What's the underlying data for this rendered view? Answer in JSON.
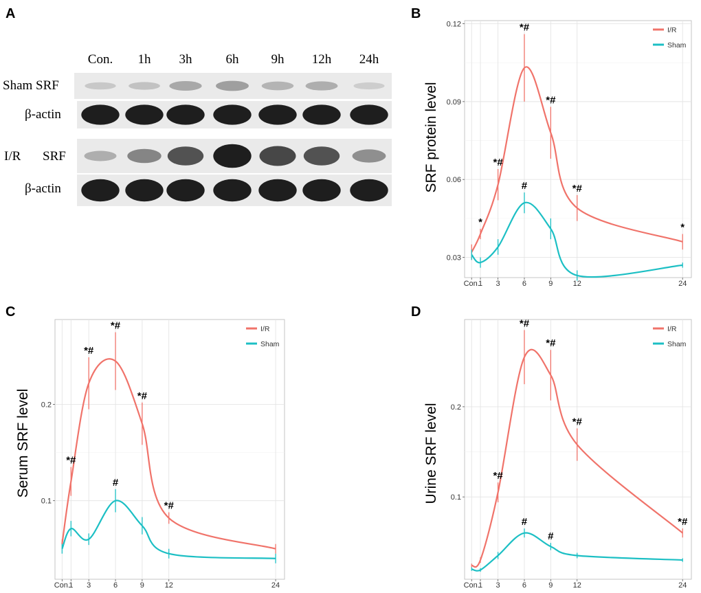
{
  "panel_a": {
    "letter": "A",
    "lanes": [
      "Con.",
      "1h",
      "3h",
      "6h",
      "9h",
      "12h",
      "24h"
    ],
    "rows": [
      {
        "label": "Sham SRF",
        "intensity": [
          0.12,
          0.15,
          0.28,
          0.32,
          0.22,
          0.25,
          0.1
        ]
      },
      {
        "label": "β-actin",
        "intensity": [
          0.95,
          0.95,
          0.95,
          0.95,
          0.95,
          0.95,
          0.95
        ]
      },
      {
        "label": "I/R",
        "label2": "SRF",
        "intensity": [
          0.25,
          0.45,
          0.7,
          0.95,
          0.75,
          0.7,
          0.4
        ]
      },
      {
        "label": "β-actin",
        "intensity": [
          0.95,
          0.95,
          0.95,
          0.95,
          0.95,
          0.95,
          0.95
        ]
      }
    ]
  },
  "chart_data": [
    {
      "panel": "B",
      "type": "line",
      "ylabel": "SRF protein level",
      "x": [
        "Con.",
        "1",
        "3",
        "6",
        "9",
        "12",
        "24"
      ],
      "x_numeric": [
        0,
        1,
        3,
        6,
        9,
        12,
        24
      ],
      "xlim": [
        -0.8,
        25
      ],
      "ylim": [
        0.0222,
        0.1212
      ],
      "yticks": [
        0.03,
        0.06,
        0.09,
        0.12
      ],
      "ytick_labels": [
        "0.03",
        "0.06",
        "0.09",
        "0.12"
      ],
      "legend": [
        "I/R",
        "Sham"
      ],
      "series": [
        {
          "name": "I/R",
          "color": "#f0736a",
          "values": [
            0.032,
            0.039,
            0.058,
            0.103,
            0.078,
            0.049,
            0.036
          ],
          "err": [
            0.003,
            0.002,
            0.006,
            0.013,
            0.01,
            0.005,
            0.003
          ],
          "labels": [
            "",
            "*",
            "*#",
            "*#",
            "*#",
            "*#",
            "*"
          ]
        },
        {
          "name": "Sham",
          "color": "#1cbfc4",
          "values": [
            0.031,
            0.028,
            0.034,
            0.051,
            0.041,
            0.023,
            0.027
          ],
          "err": [
            0.002,
            0.002,
            0.003,
            0.004,
            0.004,
            0.002,
            0.001
          ],
          "labels": [
            "",
            "",
            "",
            "#",
            "",
            "",
            ""
          ]
        }
      ]
    },
    {
      "panel": "C",
      "type": "line",
      "ylabel": "Serum SRF level",
      "x": [
        "Con.",
        "1",
        "3",
        "6",
        "9",
        "12",
        "24"
      ],
      "x_numeric": [
        0,
        1,
        3,
        6,
        9,
        12,
        24
      ],
      "xlim": [
        -0.8,
        25
      ],
      "ylim": [
        0.0184,
        0.2882
      ],
      "yticks": [
        0.1,
        0.2
      ],
      "ytick_labels": [
        "0.1",
        "0.2"
      ],
      "legend": [
        "I/R",
        "Sham"
      ],
      "series": [
        {
          "name": "I/R",
          "color": "#f0736a",
          "values": [
            0.055,
            0.12,
            0.222,
            0.245,
            0.18,
            0.082,
            0.05
          ],
          "err": [
            0.005,
            0.015,
            0.027,
            0.03,
            0.022,
            0.006,
            0.005
          ],
          "labels": [
            "",
            "*#",
            "*#",
            "*#",
            "*#",
            "*#",
            ""
          ]
        },
        {
          "name": "Sham",
          "color": "#1cbfc4",
          "values": [
            0.05,
            0.071,
            0.06,
            0.1,
            0.074,
            0.045,
            0.04
          ],
          "err": [
            0.005,
            0.008,
            0.006,
            0.012,
            0.009,
            0.005,
            0.005
          ],
          "labels": [
            "",
            "",
            "",
            "#",
            "",
            "",
            ""
          ]
        }
      ]
    },
    {
      "panel": "D",
      "type": "line",
      "ylabel": "Urine SRF level",
      "x": [
        "Con.",
        "1",
        "3",
        "6",
        "9",
        "12",
        "24"
      ],
      "x_numeric": [
        0,
        1,
        3,
        6,
        9,
        12,
        24
      ],
      "xlim": [
        -0.8,
        25
      ],
      "ylim": [
        0.0087,
        0.2967
      ],
      "yticks": [
        0.1,
        0.2
      ],
      "ytick_labels": [
        "0.1",
        "0.2"
      ],
      "legend": [
        "I/R",
        "Sham"
      ],
      "series": [
        {
          "name": "I/R",
          "color": "#f0736a",
          "values": [
            0.024,
            0.03,
            0.105,
            0.255,
            0.235,
            0.158,
            0.06
          ],
          "err": [
            0.002,
            0.003,
            0.011,
            0.03,
            0.028,
            0.018,
            0.005
          ],
          "labels": [
            "",
            "",
            "*#",
            "*#",
            "*#",
            "*#",
            "*#"
          ]
        },
        {
          "name": "Sham",
          "color": "#1cbfc4",
          "values": [
            0.02,
            0.019,
            0.035,
            0.06,
            0.045,
            0.035,
            0.03
          ],
          "err": [
            0.002,
            0.002,
            0.004,
            0.005,
            0.004,
            0.003,
            0.002
          ],
          "labels": [
            "",
            "",
            "",
            "#",
            "#",
            "",
            ""
          ]
        }
      ]
    }
  ]
}
